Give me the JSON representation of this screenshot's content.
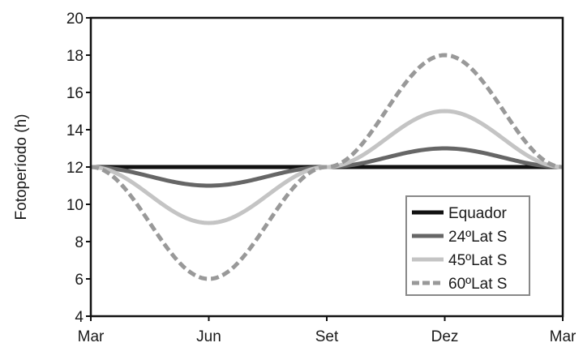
{
  "chart_data": {
    "type": "line",
    "title": "",
    "xlabel": "",
    "ylabel": "Fotoperíodo (h)",
    "categories": [
      "Mar",
      "Jun",
      "Set",
      "Dez",
      "Mar"
    ],
    "x": [
      0,
      1,
      2,
      3,
      4
    ],
    "xlim": [
      0,
      4
    ],
    "ylim": [
      4,
      20
    ],
    "yticks": [
      4,
      6,
      8,
      10,
      12,
      14,
      16,
      18,
      20
    ],
    "grid": false,
    "legend_position": "bottom-right",
    "series": [
      {
        "name": "Equador",
        "values": [
          12,
          12,
          12,
          12,
          12
        ],
        "color": "#111111",
        "dash": "solid"
      },
      {
        "name": "24ºLat S",
        "values": [
          12,
          11,
          12,
          13,
          12
        ],
        "color": "#666666",
        "dash": "solid"
      },
      {
        "name": "45ºLat S",
        "values": [
          12,
          9,
          12,
          15,
          12
        ],
        "color": "#c4c4c4",
        "dash": "solid"
      },
      {
        "name": "60ºLat S",
        "values": [
          12,
          6,
          12,
          18,
          12
        ],
        "color": "#999999",
        "dash": "dashed"
      }
    ]
  }
}
